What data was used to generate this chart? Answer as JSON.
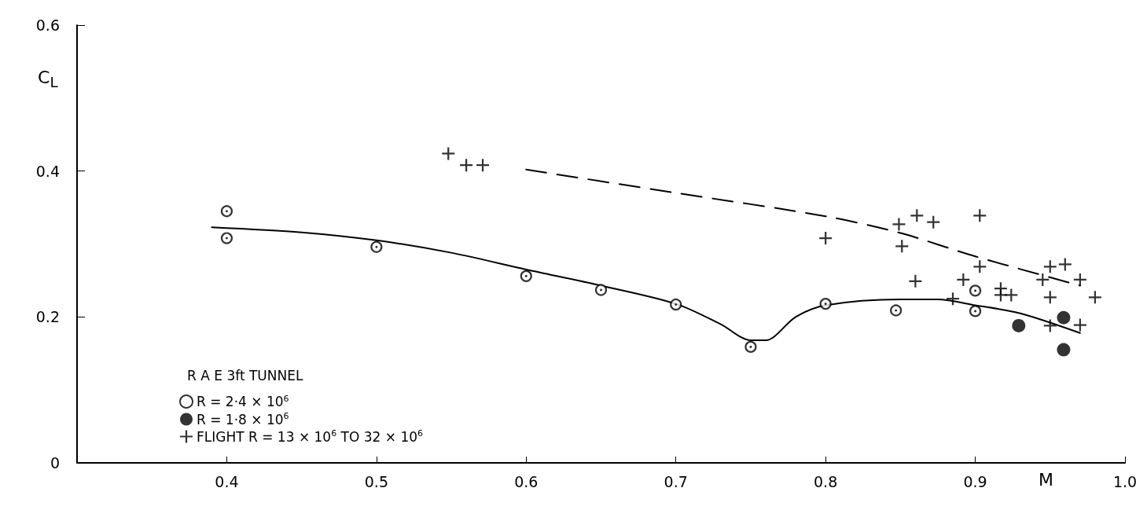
{
  "chart_data": {
    "type": "scatter",
    "xlabel": "M",
    "ylabel": "C$_{L}$",
    "legend_title": "R A E 3ft TUNNEL",
    "xlim": [
      0.3,
      1.0
    ],
    "xticks": [
      0.4,
      0.5,
      0.6,
      0.7,
      0.8,
      0.9,
      {
        "value": 1.0,
        "label": "1.0"
      }
    ],
    "ylim": [
      0,
      0.6
    ],
    "yticks": [
      0,
      0.2,
      0.4,
      0.6
    ],
    "grid": false,
    "legend": "bottom left",
    "series": [
      {
        "name": "R = 2·4 × 10$^{6}$",
        "color": "#000000",
        "marker": "circle",
        "x": [
          0.4,
          0.4,
          0.5,
          0.6,
          0.65,
          0.7,
          0.75,
          0.8,
          0.847,
          0.9,
          0.9
        ],
        "values": [
          0.345,
          0.308,
          0.296,
          0.256,
          0.237,
          0.217,
          0.159,
          0.218,
          0.209,
          0.208,
          0.236
        ]
      },
      {
        "name": "R = 1·8 × 10$^{6}$",
        "color": "#000000",
        "marker": "circle",
        "x": [
          0.929,
          0.959,
          0.959
        ],
        "values": [
          0.188,
          0.199,
          0.155
        ]
      },
      {
        "name": "FLIGHT R = 13 × 10$^{6}$ TO 32 × 10$^{6}$",
        "color": "#000000",
        "marker": "cross",
        "x": [
          0.548,
          0.56,
          0.571,
          0.8,
          0.849,
          0.851,
          0.861,
          0.872,
          0.86,
          0.903,
          0.903,
          0.892,
          0.885,
          0.917,
          0.917,
          0.924,
          0.945,
          0.95,
          0.96,
          0.95,
          0.97,
          0.98,
          0.95,
          0.97
        ],
        "values": [
          0.424,
          0.408,
          0.408,
          0.308,
          0.327,
          0.297,
          0.339,
          0.33,
          0.249,
          0.339,
          0.269,
          0.251,
          0.225,
          0.239,
          0.23,
          0.23,
          0.251,
          0.269,
          0.272,
          0.227,
          0.251,
          0.227,
          0.188,
          0.189
        ]
      },
      {
        "type": "line",
        "color": "#000000",
        "line_style": "solid",
        "marker": "none",
        "x": [
          0.39,
          0.45,
          0.5,
          0.55,
          0.6,
          0.65,
          0.7,
          0.73,
          0.75,
          0.76,
          0.78,
          0.8,
          0.85,
          0.875,
          0.9,
          0.93,
          0.97
        ],
        "values": [
          0.323,
          0.316,
          0.305,
          0.288,
          0.265,
          0.243,
          0.218,
          0.19,
          0.168,
          0.168,
          0.2,
          0.216,
          0.224,
          0.224,
          0.216,
          0.205,
          0.178
        ]
      },
      {
        "type": "line",
        "color": "#000000",
        "line_style": "dashed",
        "marker": "none",
        "x": [
          0.6,
          0.7,
          0.8,
          0.85,
          0.9,
          0.97
        ],
        "values": [
          0.402,
          0.37,
          0.338,
          0.315,
          0.283,
          0.243
        ]
      }
    ]
  }
}
